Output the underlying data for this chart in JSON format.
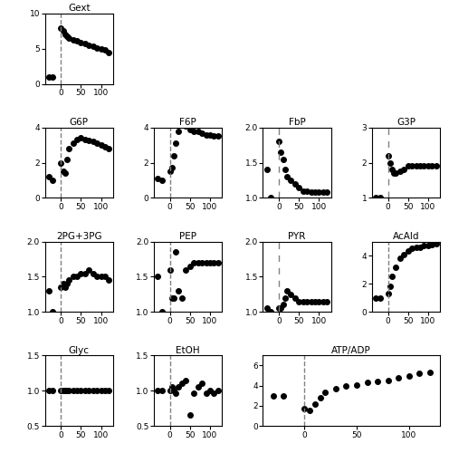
{
  "subplots": [
    {
      "title": "Gext",
      "x": [
        -30,
        -20,
        0,
        5,
        10,
        15,
        20,
        30,
        40,
        50,
        60,
        70,
        80,
        90,
        100,
        110,
        120
      ],
      "y": [
        1.0,
        1.0,
        8.0,
        7.5,
        7.0,
        6.8,
        6.5,
        6.3,
        6.1,
        5.9,
        5.7,
        5.5,
        5.3,
        5.1,
        5.0,
        4.8,
        4.5
      ],
      "ylim": [
        0,
        10
      ],
      "yticks": [
        0,
        5,
        10
      ],
      "dashed_x": 0,
      "dashed_style": "dashed",
      "row": 0,
      "col": 0
    },
    {
      "title": "G6P",
      "x": [
        -30,
        -20,
        0,
        5,
        10,
        15,
        20,
        30,
        40,
        50,
        60,
        70,
        80,
        90,
        100,
        110,
        120
      ],
      "y": [
        1.2,
        1.0,
        2.0,
        1.5,
        1.4,
        2.2,
        2.8,
        3.1,
        3.3,
        3.4,
        3.3,
        3.25,
        3.2,
        3.1,
        3.0,
        2.9,
        2.8
      ],
      "ylim": [
        0,
        4
      ],
      "yticks": [
        0,
        2,
        4
      ],
      "dashed_x": 0,
      "dashed_style": "dashed",
      "row": 1,
      "col": 0
    },
    {
      "title": "F6P",
      "x": [
        -30,
        -20,
        0,
        5,
        10,
        15,
        20,
        30,
        40,
        50,
        60,
        70,
        80,
        90,
        100,
        110,
        120
      ],
      "y": [
        1.1,
        1.0,
        1.5,
        1.7,
        2.4,
        3.1,
        3.8,
        4.2,
        4.1,
        3.9,
        3.8,
        3.8,
        3.7,
        3.6,
        3.6,
        3.5,
        3.5
      ],
      "ylim": [
        0,
        4
      ],
      "yticks": [
        0,
        2,
        4
      ],
      "dashed_x": 0,
      "dashed_style": "dashed",
      "row": 1,
      "col": 1
    },
    {
      "title": "FbP",
      "x": [
        -30,
        -20,
        0,
        5,
        10,
        15,
        20,
        30,
        40,
        50,
        60,
        70,
        80,
        90,
        100,
        110,
        120
      ],
      "y": [
        1.4,
        1.0,
        1.8,
        1.65,
        1.55,
        1.4,
        1.3,
        1.25,
        1.2,
        1.15,
        1.1,
        1.1,
        1.08,
        1.08,
        1.08,
        1.08,
        1.08
      ],
      "ylim": [
        1,
        2
      ],
      "yticks": [
        1,
        1.5,
        2
      ],
      "dashed_x": 0,
      "dashed_style": "loosely dashed",
      "row": 1,
      "col": 2
    },
    {
      "title": "G3P",
      "x": [
        -30,
        -20,
        0,
        5,
        10,
        15,
        20,
        30,
        40,
        50,
        60,
        70,
        80,
        90,
        100,
        110,
        120
      ],
      "y": [
        1.0,
        1.0,
        2.2,
        2.0,
        1.8,
        1.7,
        1.7,
        1.75,
        1.8,
        1.9,
        1.9,
        1.9,
        1.9,
        1.9,
        1.9,
        1.9,
        1.9
      ],
      "ylim": [
        1,
        3
      ],
      "yticks": [
        1,
        2,
        3
      ],
      "dashed_x": 0,
      "dashed_style": "loosely dashed",
      "row": 1,
      "col": 3
    },
    {
      "title": "2PG+3PG",
      "x": [
        -30,
        -20,
        0,
        5,
        10,
        15,
        20,
        30,
        40,
        50,
        60,
        70,
        80,
        90,
        100,
        110,
        120
      ],
      "y": [
        1.3,
        1.0,
        1.35,
        1.4,
        1.35,
        1.4,
        1.45,
        1.5,
        1.5,
        1.55,
        1.55,
        1.6,
        1.55,
        1.5,
        1.5,
        1.5,
        1.45
      ],
      "ylim": [
        1,
        2
      ],
      "yticks": [
        1,
        1.5,
        2
      ],
      "dashed_x": 0,
      "dashed_style": "dashed",
      "row": 2,
      "col": 0
    },
    {
      "title": "PEP",
      "x": [
        -30,
        -20,
        0,
        5,
        10,
        15,
        20,
        30,
        40,
        50,
        60,
        70,
        80,
        90,
        100,
        110,
        120
      ],
      "y": [
        1.5,
        1.0,
        1.6,
        1.2,
        1.2,
        1.85,
        1.3,
        1.2,
        1.6,
        1.65,
        1.7,
        1.7,
        1.7,
        1.7,
        1.7,
        1.7,
        1.7
      ],
      "ylim": [
        1,
        2
      ],
      "yticks": [
        1,
        1.5,
        2
      ],
      "dashed_x": 0,
      "dashed_style": "dashed",
      "row": 2,
      "col": 1
    },
    {
      "title": "PYR",
      "x": [
        -30,
        -20,
        0,
        5,
        10,
        15,
        20,
        30,
        40,
        50,
        60,
        70,
        80,
        90,
        100,
        110,
        120
      ],
      "y": [
        1.05,
        1.0,
        1.05,
        1.05,
        1.1,
        1.2,
        1.3,
        1.25,
        1.2,
        1.15,
        1.15,
        1.15,
        1.15,
        1.15,
        1.15,
        1.15,
        1.15
      ],
      "ylim": [
        1,
        2
      ],
      "yticks": [
        1,
        1.5,
        2
      ],
      "dashed_x": 0,
      "dashed_style": "loosely dashed",
      "row": 2,
      "col": 2
    },
    {
      "title": "AcAld",
      "x": [
        -30,
        -20,
        0,
        5,
        10,
        20,
        30,
        40,
        50,
        60,
        70,
        80,
        90,
        100,
        110,
        120
      ],
      "y": [
        1.0,
        1.0,
        1.3,
        1.8,
        2.5,
        3.2,
        3.8,
        4.1,
        4.3,
        4.5,
        4.6,
        4.6,
        4.7,
        4.7,
        4.8,
        4.85
      ],
      "ylim": [
        0,
        5
      ],
      "yticks": [
        0,
        2,
        4
      ],
      "dashed_x": 0,
      "dashed_style": "dashed",
      "row": 2,
      "col": 3
    },
    {
      "title": "Glyc",
      "x": [
        -30,
        -20,
        0,
        5,
        10,
        15,
        20,
        30,
        40,
        50,
        60,
        70,
        80,
        90,
        100,
        110,
        120
      ],
      "y": [
        1.0,
        1.0,
        1.0,
        1.0,
        1.0,
        1.0,
        1.0,
        1.0,
        1.0,
        1.0,
        1.0,
        1.0,
        1.0,
        1.0,
        1.0,
        1.0,
        1.0
      ],
      "ylim": [
        0.5,
        1.5
      ],
      "yticks": [
        0.5,
        1,
        1.5
      ],
      "dashed_x": 0,
      "dashed_style": "dashed",
      "row": 3,
      "col": 0
    },
    {
      "title": "EtOH",
      "x": [
        -30,
        -20,
        0,
        5,
        10,
        15,
        20,
        30,
        40,
        50,
        60,
        70,
        80,
        90,
        100,
        110,
        120
      ],
      "y": [
        1.0,
        1.0,
        1.0,
        1.05,
        1.0,
        0.97,
        1.05,
        1.1,
        1.15,
        0.65,
        0.97,
        1.05,
        1.1,
        0.97,
        1.0,
        0.97,
        1.0
      ],
      "ylim": [
        0.5,
        1.5
      ],
      "yticks": [
        0.5,
        1,
        1.5
      ],
      "dashed_x": 0,
      "dashed_style": "dashed",
      "row": 3,
      "col": 1
    },
    {
      "title": "ATP/ADP",
      "x": [
        -30,
        -20,
        0,
        5,
        10,
        15,
        20,
        30,
        40,
        50,
        60,
        70,
        80,
        90,
        100,
        110,
        120
      ],
      "y": [
        3.0,
        3.0,
        1.7,
        1.5,
        2.2,
        2.8,
        3.3,
        3.7,
        4.0,
        4.1,
        4.3,
        4.4,
        4.5,
        4.8,
        5.0,
        5.2,
        5.3
      ],
      "ylim": [
        0,
        7
      ],
      "yticks": [
        0,
        2,
        4,
        6
      ],
      "dashed_x": 0,
      "dashed_style": "dashed",
      "row": 3,
      "col": 2
    }
  ],
  "xlim": [
    -40,
    130
  ],
  "xticks": [
    0,
    50,
    100
  ],
  "marker": "o",
  "markersize": 4,
  "color": "black",
  "dashed_color": "gray",
  "dashed_lw": 1.0,
  "linewidth": 0,
  "figsize": [
    4.96,
    5.0
  ],
  "dpi": 100
}
